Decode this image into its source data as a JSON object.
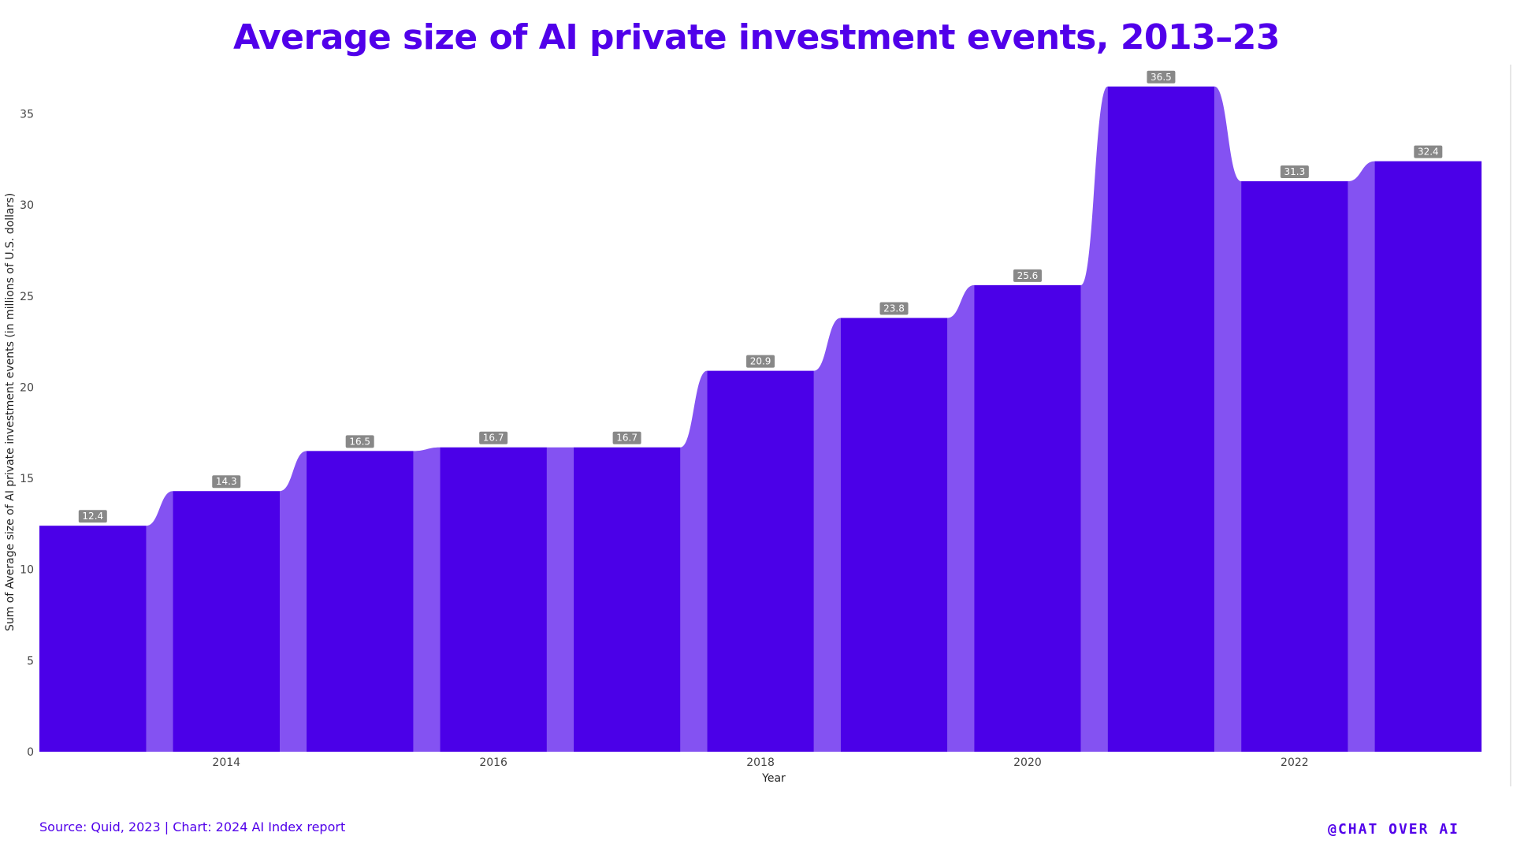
{
  "chart_data": {
    "type": "area",
    "title": "Average size of AI private investment events, 2013–23",
    "xlabel": "Year",
    "ylabel": "Sum of Average size of AI private investment events (in millions of U.S. dollars)",
    "x": [
      2013,
      2014,
      2015,
      2016,
      2017,
      2018,
      2019,
      2020,
      2021,
      2022,
      2023
    ],
    "values": [
      12.4,
      14.3,
      16.5,
      16.7,
      16.7,
      20.9,
      23.8,
      25.6,
      36.5,
      31.3,
      32.4
    ],
    "data_labels": [
      "12.4",
      "14.3",
      "16.5",
      "16.7",
      "16.7",
      "20.9",
      "23.8",
      "25.6",
      "36.5",
      "31.3",
      "32.4"
    ],
    "xticks": [
      2014,
      2016,
      2018,
      2020,
      2022
    ],
    "yticks": [
      0,
      5,
      10,
      15,
      20,
      25,
      30,
      35
    ],
    "ylim": [
      0,
      37.7
    ],
    "grid": false,
    "colors": {
      "bar": "#4b00e8",
      "connector": "#8452f2",
      "label_bg": "#888888"
    }
  },
  "footer": {
    "source": "Source: Quid, 2023 | Chart: 2024 AI Index report",
    "brand": "@CHAT OVER AI"
  }
}
